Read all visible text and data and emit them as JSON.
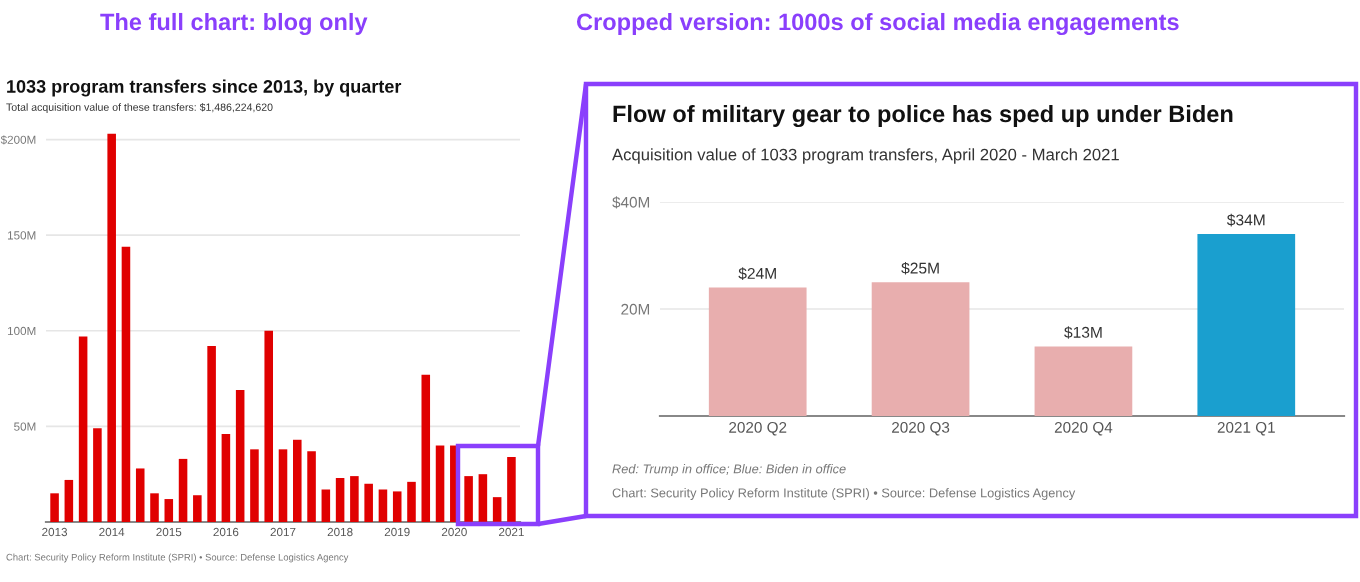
{
  "chart_data": [
    {
      "type": "bar",
      "title": "1033 program transfers since 2013, by quarter",
      "subtitle": "Total acquisition value of these transfers: $1,486,224,620",
      "categories": [
        "2013",
        null,
        null,
        null,
        "2014",
        null,
        null,
        null,
        "2015",
        null,
        null,
        null,
        "2016",
        null,
        null,
        null,
        "2017",
        null,
        null,
        null,
        "2018",
        null,
        null,
        null,
        "2019",
        null,
        null,
        null,
        "2020",
        null,
        null,
        null,
        "2021"
      ],
      "values": [
        15,
        22,
        97,
        49,
        203,
        144,
        28,
        15,
        12,
        33,
        14,
        92,
        46,
        69,
        38,
        100,
        38,
        43,
        37,
        17,
        23,
        24,
        20,
        17,
        16,
        21,
        77,
        40,
        40,
        24,
        25,
        13,
        34
      ],
      "color": "#e00000",
      "ylim": [
        0,
        205
      ],
      "yticks": [
        {
          "value": 50,
          "label": "50M"
        },
        {
          "value": 100,
          "label": "100M"
        },
        {
          "value": 150,
          "label": "150M"
        },
        {
          "value": 200,
          "label": "$200M"
        }
      ],
      "grid": "y",
      "annotations": [
        "The full chart: blog only",
        "Chart: Security Policy Reform Institute (SPRI) • Source: Defense Logistics Agency"
      ]
    },
    {
      "type": "bar",
      "title": "Flow of military gear to police has sped up under Biden",
      "subtitle": "Acquisition value of 1033 program transfers, April 2020 - March 2021",
      "categories": [
        "2020 Q2",
        "2020 Q3",
        "2020 Q4",
        "2021 Q1"
      ],
      "values": [
        24,
        25,
        13,
        34
      ],
      "colors": [
        "#e8aeae",
        "#e8aeae",
        "#e8aeae",
        "#1a9fcf"
      ],
      "value_labels": [
        "$24M",
        "$25M",
        "$13M",
        "$34M"
      ],
      "ylim": [
        0,
        40
      ],
      "yticks": [
        {
          "value": 20,
          "label": "20M"
        },
        {
          "value": 40,
          "label": "$40M"
        }
      ],
      "grid": "y",
      "annotations": [
        "Cropped version: 1000s of social media engagements",
        "Red: Trump in office; Blue: Biden in office",
        "Chart: Security Policy Reform Institute (SPRI) • Source: Defense Logistics Agency"
      ]
    }
  ]
}
